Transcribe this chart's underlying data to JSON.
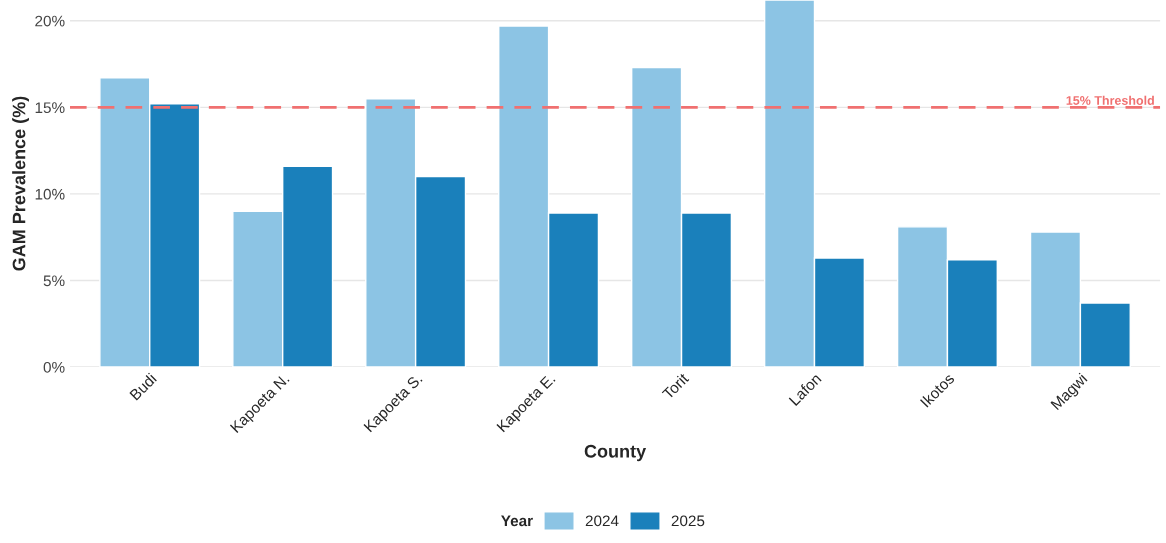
{
  "chart_data": {
    "type": "bar",
    "xlabel": "County",
    "ylabel": "GAM Prevalence (%)",
    "legend_title": "Year",
    "categories": [
      "Budi",
      "Kapoeta N.",
      "Kapoeta S.",
      "Kapoeta E.",
      "Torit",
      "Lafon",
      "Ikotos",
      "Magwi"
    ],
    "series": [
      {
        "name": "2024",
        "color": "#8cc4e4",
        "values": [
          16.7,
          9.0,
          15.5,
          19.7,
          17.3,
          21.2,
          8.1,
          7.8
        ]
      },
      {
        "name": "2025",
        "color": "#1a80bb",
        "values": [
          15.2,
          11.6,
          11.0,
          8.9,
          8.9,
          6.3,
          6.2,
          3.7
        ]
      }
    ],
    "ylim": [
      0,
      21.2
    ],
    "yticks": [
      {
        "value": 0,
        "label": "0%"
      },
      {
        "value": 5,
        "label": "5%"
      },
      {
        "value": 10,
        "label": "10%"
      },
      {
        "value": 15,
        "label": "15%"
      },
      {
        "value": 20,
        "label": "20%"
      }
    ],
    "ref_lines": [
      {
        "axis": "y",
        "value": 15,
        "label": "15% Threshold",
        "color": "#f07070",
        "line_style": "dashed"
      }
    ],
    "grid": "y",
    "legend": "bottom"
  }
}
